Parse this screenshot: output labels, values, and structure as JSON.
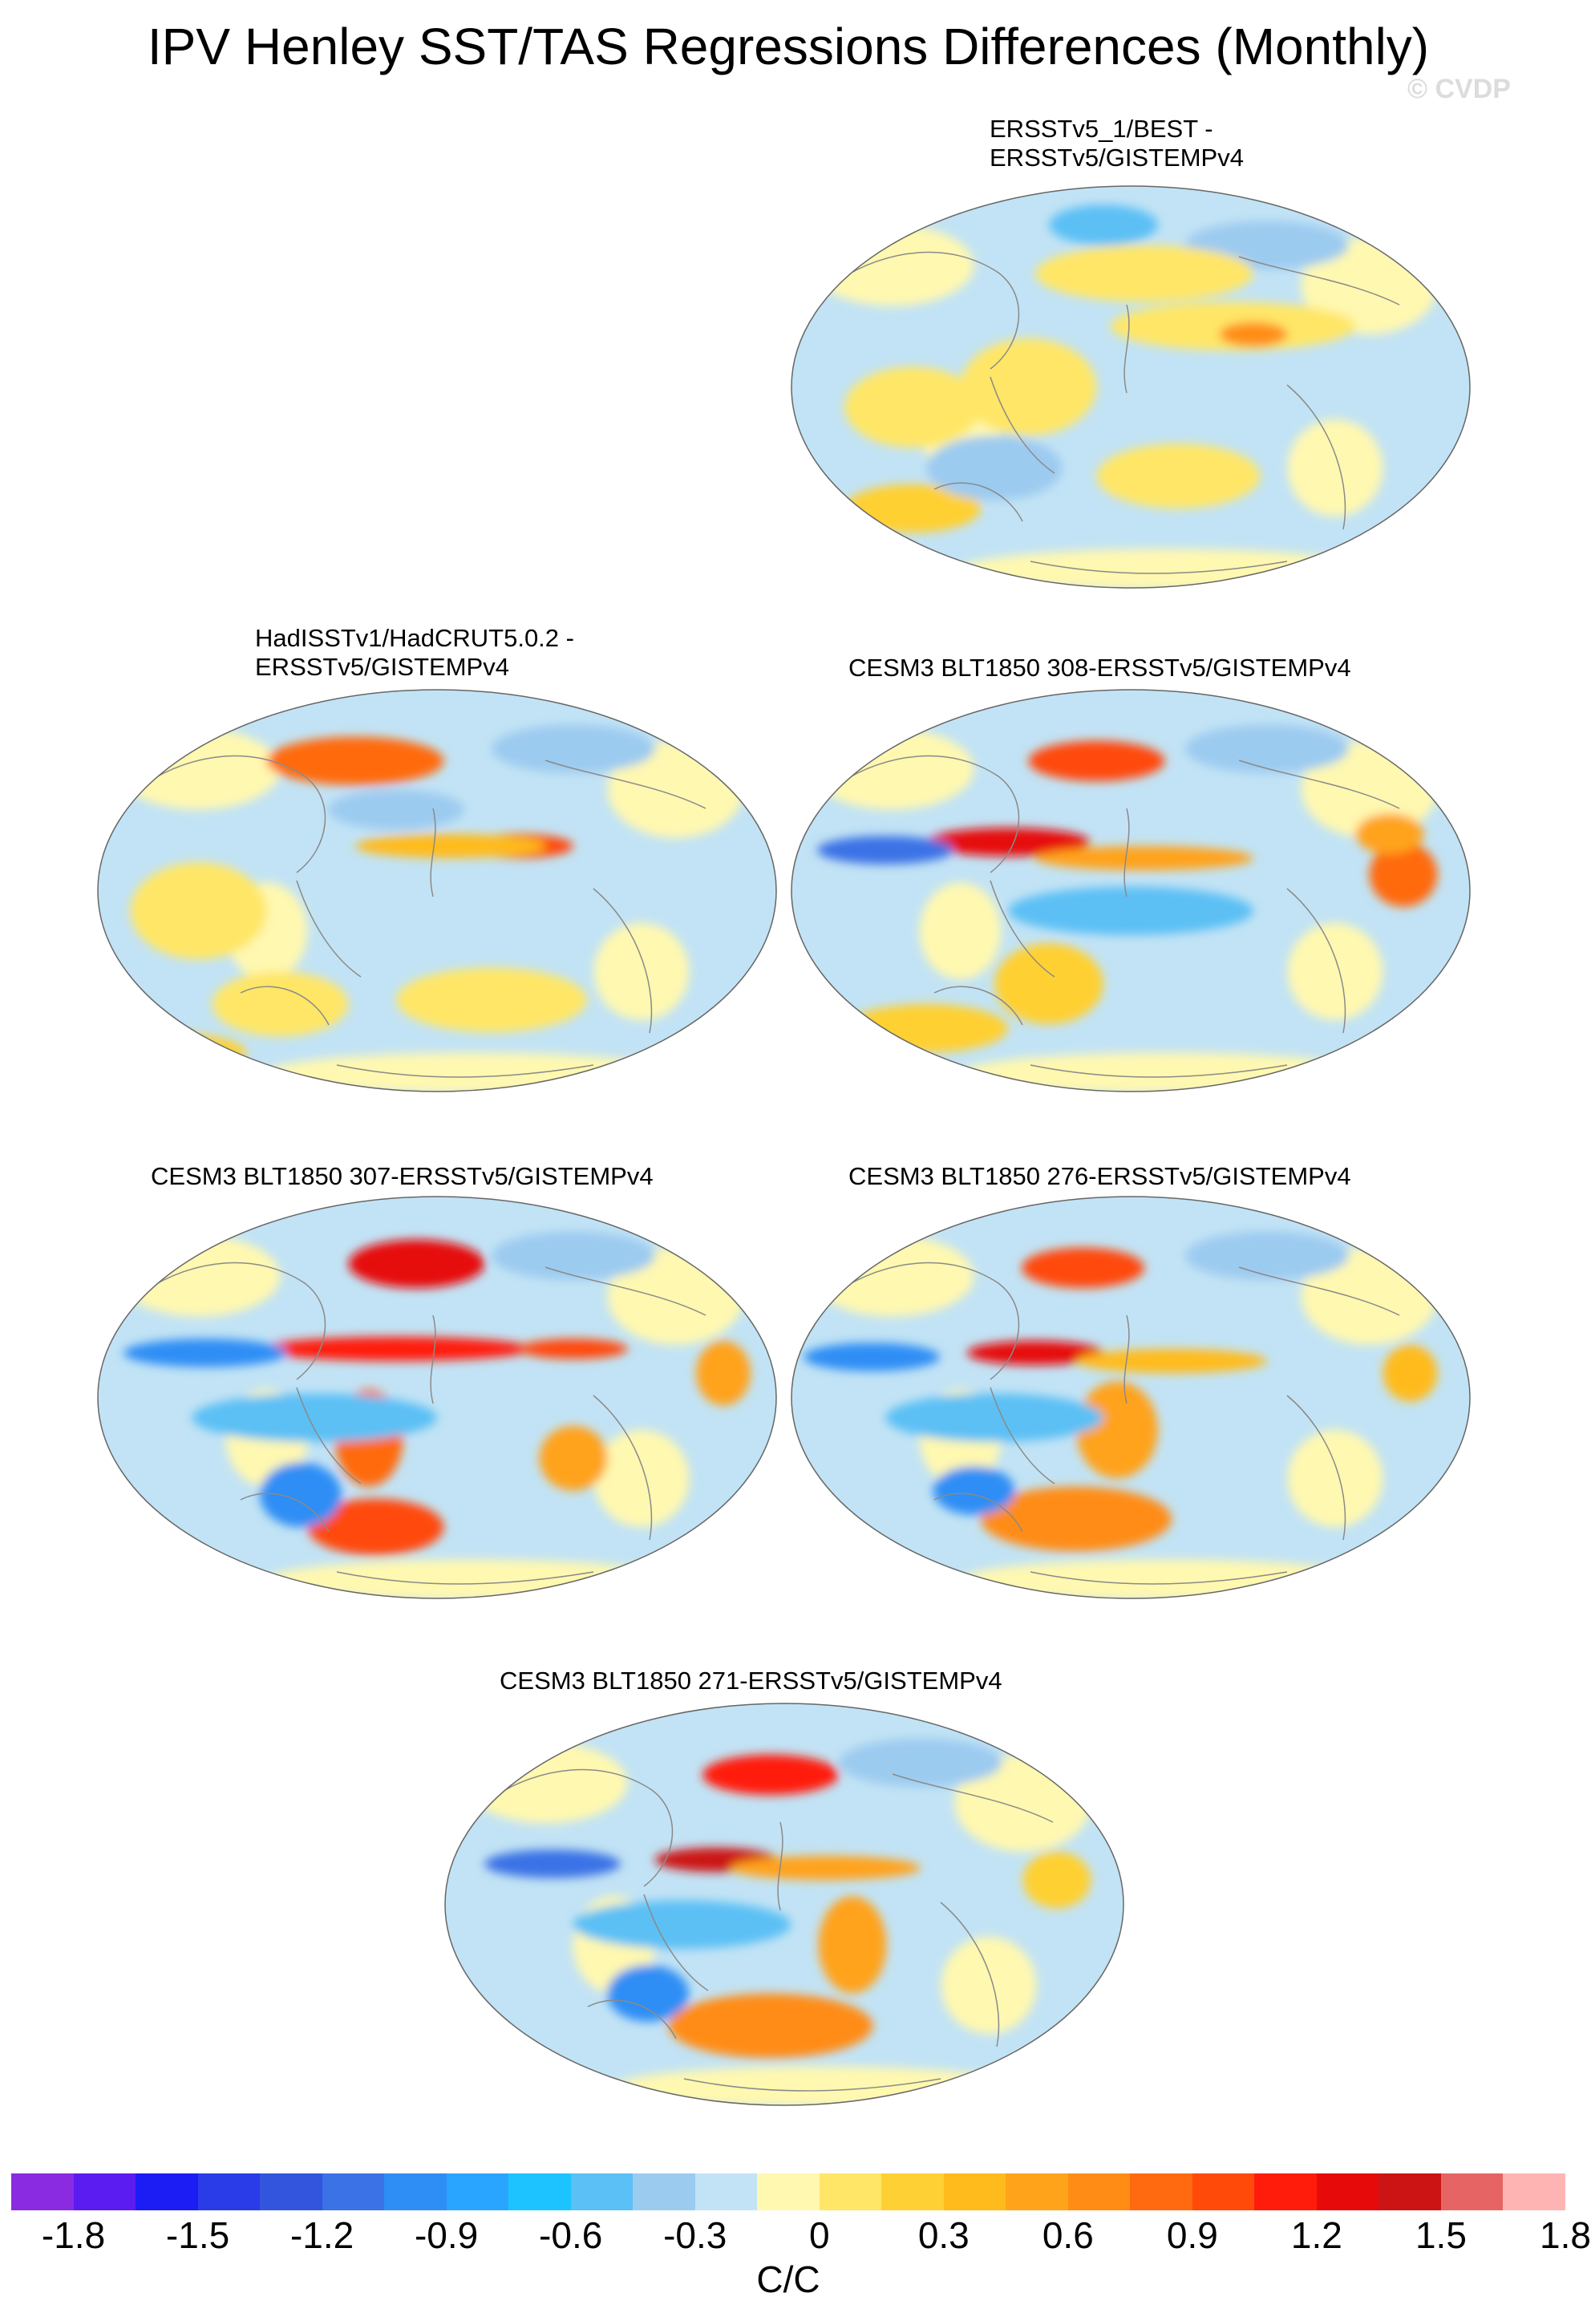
{
  "title": "IPV Henley SST/TAS Regressions Differences (Monthly)",
  "watermark": "© CVDP",
  "panels": [
    {
      "title_line1": "ERSSTv5_1/BEST -",
      "title_line2": "ERSSTv5/GISTEMPv4"
    },
    {
      "title_line1": "HadISSTv1/HadCRUT5.0.2 -",
      "title_line2": "ERSSTv5/GISTEMPv4"
    },
    {
      "title_line1": "CESM3 BLT1850 308-ERSSTv5/GISTEMPv4",
      "title_line2": ""
    },
    {
      "title_line1": "CESM3 BLT1850 307-ERSSTv5/GISTEMPv4",
      "title_line2": ""
    },
    {
      "title_line1": "CESM3 BLT1850 276-ERSSTv5/GISTEMPv4",
      "title_line2": ""
    },
    {
      "title_line1": "CESM3 BLT1850 271-ERSSTv5/GISTEMPv4",
      "title_line2": ""
    }
  ],
  "colorbar": {
    "units": "C/C",
    "colors": [
      "#8a2be2",
      "#5a1cf0",
      "#1c1cf5",
      "#2a3be8",
      "#3355dd",
      "#3b72e6",
      "#2e8ef5",
      "#2aa5ff",
      "#1cc3ff",
      "#5bc0f5",
      "#9ccbf0",
      "#c2e3f5",
      "#fff8b0",
      "#ffe666",
      "#ffd033",
      "#ffbb1c",
      "#ffa31a",
      "#ff8c14",
      "#ff6a10",
      "#ff4a0a",
      "#ff1c0a",
      "#e60a0a",
      "#cc1414",
      "#e66464",
      "#ffb4b4"
    ],
    "tick_labels": [
      "-1.8",
      "-1.5",
      "-1.2",
      "-0.9",
      "-0.6",
      "-0.3",
      "0",
      "0.3",
      "0.6",
      "0.9",
      "1.2",
      "1.5",
      "1.8"
    ]
  }
}
